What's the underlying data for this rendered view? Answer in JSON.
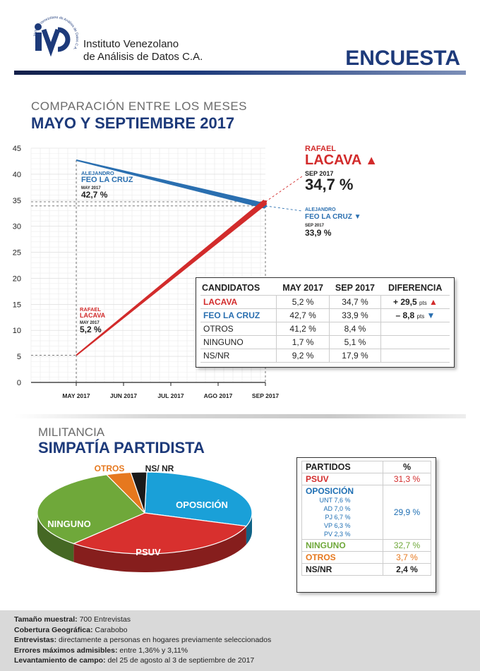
{
  "header": {
    "logo_letters": "iVAD",
    "logo_ring_text": "Instituto Venezolano de Análisis de Datos C.A.",
    "institute_line1": "Instituto Venezolano",
    "institute_line2": "de Análisis de Datos C.A.",
    "badge": "ENCUESTA"
  },
  "comparison": {
    "subtitle": "COMPARACIÓN ENTRE LOS MESES",
    "title": "MAYO Y SEPTIEMBRE 2017"
  },
  "chart_data": [
    {
      "type": "line",
      "categories": [
        "MAY 2017",
        "JUN 2017",
        "JUL 2017",
        "AGO 2017",
        "SEP 2017"
      ],
      "series": [
        {
          "name": "FEO LA CRUZ",
          "x": [
            "MAY 2017",
            "SEP 2017"
          ],
          "values": [
            42.7,
            33.9
          ],
          "color": "#2a6fb0"
        },
        {
          "name": "LACAVA",
          "x": [
            "MAY 2017",
            "SEP 2017"
          ],
          "values": [
            5.2,
            34.7
          ],
          "color": "#d22b2b"
        }
      ],
      "yticks": [
        0,
        5,
        10,
        15,
        20,
        25,
        30,
        35,
        40,
        45
      ],
      "ylim": [
        0,
        45
      ],
      "grid": true,
      "annotations": {
        "feo_start": {
          "first": "ALEJANDRO",
          "last": "FEO LA CRUZ",
          "date": "MAY 2017",
          "value": "42,7 %"
        },
        "lacava_start": {
          "first": "RAFAEL",
          "last": "LACAVA",
          "date": "MAY 2017",
          "value": "5,2 %"
        },
        "lacava_end": {
          "first": "RAFAEL",
          "last": "LACAVA",
          "date": "SEP 2017",
          "value": "34,7 %"
        },
        "feo_end": {
          "first": "ALEJANDRO",
          "last": "FEO LA CRUZ",
          "date": "SEP 2017",
          "value": "33,9 %"
        }
      }
    },
    {
      "type": "pie",
      "labels": [
        "OPOSICIÓN",
        "PSUV",
        "NINGUNO",
        "OTROS",
        "NS/ NR"
      ],
      "values": [
        29.9,
        31.3,
        32.7,
        3.7,
        2.4
      ],
      "colors": [
        "#1aa0d8",
        "#d8302e",
        "#6fa83a",
        "#e6781e",
        "#1a1a1a"
      ]
    }
  ],
  "table1": {
    "headers": [
      "CANDIDATOS",
      "MAY 2017",
      "SEP 2017",
      "DIFERENCIA"
    ],
    "rows": [
      {
        "name": "LACAVA",
        "may": "5,2 %",
        "sep": "34,7 %",
        "diff_sign": "+",
        "diff": "29,5",
        "diff_unit": "pts",
        "color": "#d22b2b"
      },
      {
        "name": "FEO LA CRUZ",
        "may": "42,7 %",
        "sep": "33,9 %",
        "diff_sign": "–",
        "diff": "8,8",
        "diff_unit": "pts",
        "color": "#2a6fb0"
      },
      {
        "name": "OTROS",
        "may": "41,2 %",
        "sep": "8,4 %"
      },
      {
        "name": "NINGUNO",
        "may": "1,7 %",
        "sep": "5,1 %"
      },
      {
        "name": "NS/NR",
        "may": "9,2 %",
        "sep": "17,9 %"
      }
    ]
  },
  "militancia": {
    "subtitle": "MILITANCIA",
    "title": "SIMPATÍA PARTIDISTA"
  },
  "table2": {
    "header_party": "PARTIDOS",
    "header_pct": "%",
    "psuv": {
      "name": "PSUV",
      "pct": "31,3 %"
    },
    "oposicion": {
      "name": "OPOSICIÓN",
      "pct": "29,9 %",
      "parties": [
        {
          "name": "UNT",
          "pct": "7,6 %"
        },
        {
          "name": "AD",
          "pct": "7,0 %"
        },
        {
          "name": "PJ",
          "pct": "6,7 %"
        },
        {
          "name": "VP",
          "pct": "6,3 %"
        },
        {
          "name": "PV",
          "pct": "2,3 %"
        }
      ]
    },
    "ninguno": {
      "name": "NINGUNO",
      "pct": "32,7 %"
    },
    "otros": {
      "name": "OTROS",
      "pct": "3,7 %"
    },
    "nsnr": {
      "name": "NS/NR",
      "pct": "2,4 %"
    }
  },
  "footer": {
    "l1_label": "Tamaño muestral:",
    "l1_value": " 700 Entrevistas",
    "l2_label": "Cobertura Geográfica:",
    "l2_value": " Carabobo",
    "l3_label": "Entrevistas:",
    "l3_value": " directamente a personas en hogares previamente seleccionados",
    "l4_label": "Errores máximos admisibles:",
    "l4_value": " entre 1,36% y 3,11%",
    "l5_label": "Levantamiento de campo:",
    "l5_value": " del 25 de agosto al 3 de septiembre de 2017"
  },
  "colors": {
    "navy": "#1d3a7a",
    "red": "#d22b2b",
    "blue": "#2a6fb0",
    "green": "#6fa83a",
    "orange": "#e6781e"
  }
}
